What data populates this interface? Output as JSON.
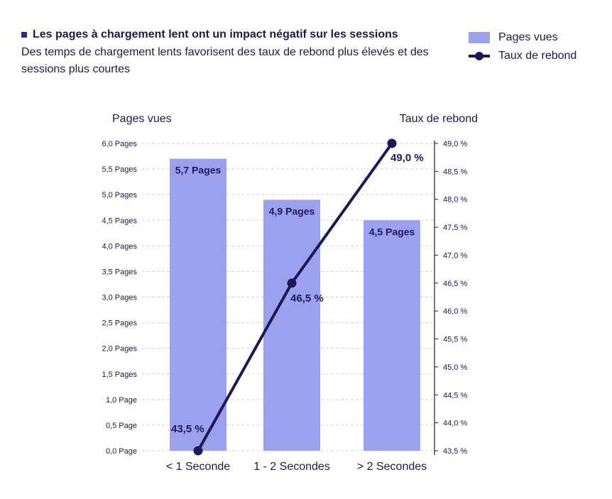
{
  "header": {
    "title": "Les pages à chargement lent ont un impact négatif sur les sessions",
    "subtitle": "Des temps de chargement lents favorisent des taux de rebond plus élevés et des sessions plus courtes"
  },
  "legend": {
    "bars_label": "Pages vues",
    "line_label": "Taux de rebond"
  },
  "colors": {
    "bar": "#9ba0ef",
    "line": "#1f1858",
    "grid": "#d4d4dc",
    "axis": "#1c1a4a"
  },
  "chart_data": {
    "type": "bar+line",
    "categories": [
      "< 1 Seconde",
      "1 - 2 Secondes",
      "> 2 Secondes"
    ],
    "series": [
      {
        "name": "Pages vues",
        "type": "bar",
        "axis": "left",
        "values": [
          5.7,
          4.9,
          4.5
        ],
        "value_labels": [
          "5,7 Pages",
          "4,9 Pages",
          "4,5 Pages"
        ]
      },
      {
        "name": "Taux de rebond",
        "type": "line",
        "axis": "right",
        "values": [
          43.5,
          46.5,
          49.0
        ],
        "value_labels": [
          "43,5 %",
          "46,5 %",
          "49,0 %"
        ]
      }
    ],
    "left_axis": {
      "title": "Pages vues",
      "ylim": [
        0,
        6
      ],
      "ticks": [
        0,
        0.5,
        1,
        1.5,
        2,
        2.5,
        3,
        3.5,
        4,
        4.5,
        5,
        5.5,
        6
      ],
      "tick_labels": [
        "0,0 Page",
        "0,5 Page",
        "1,0 Page",
        "1,5 Pages",
        "2,0 Pages",
        "2,5 Pages",
        "3,0 Pages",
        "3,5 Pages",
        "4,0 Pages",
        "4,5 Pages",
        "5,0 Pages",
        "5,5 Pages",
        "6,0 Pages"
      ]
    },
    "right_axis": {
      "title": "Taux de rebond",
      "ylim": [
        43.5,
        49.0
      ],
      "ticks": [
        43.5,
        44.0,
        44.5,
        45.0,
        45.5,
        46.0,
        46.5,
        47.0,
        47.5,
        48.0,
        48.5,
        49.0
      ],
      "tick_labels": [
        "43,5 %",
        "44,0 %",
        "44,5 %",
        "45,0 %",
        "45,5 %",
        "46,0 %",
        "46,5 %",
        "47,0 %",
        "47,5 %",
        "48,0 %",
        "48,5 %",
        "49,0 %"
      ]
    },
    "grid": true,
    "legend_position": "top-right"
  }
}
